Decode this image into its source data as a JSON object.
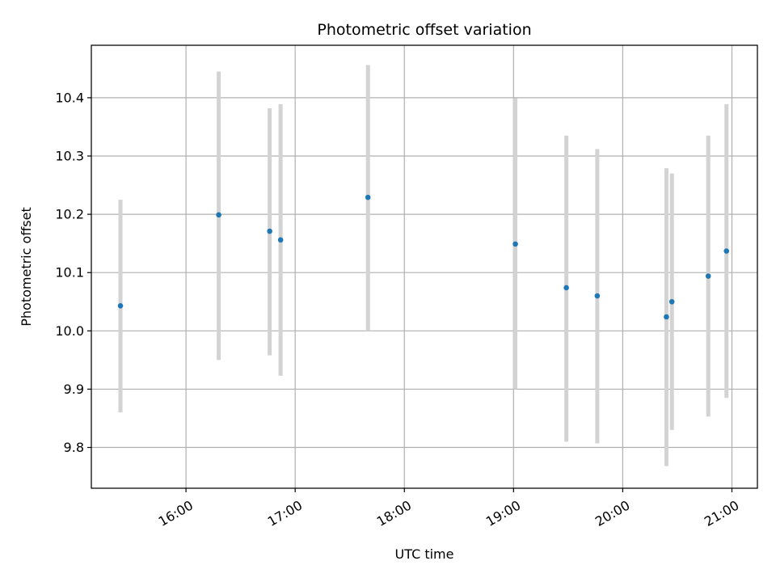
{
  "chart_data": {
    "type": "scatter",
    "title": "Photometric offset variation",
    "xlabel": "UTC time",
    "ylabel": "Photometric offset",
    "x_axis_kind": "time",
    "xlim": [
      "15:08",
      "21:14"
    ],
    "ylim": [
      9.73,
      10.49
    ],
    "xticks": [
      "16:00",
      "17:00",
      "18:00",
      "19:00",
      "20:00",
      "21:00"
    ],
    "yticks": [
      "9.8",
      "9.9",
      "10.0",
      "10.1",
      "10.2",
      "10.3",
      "10.4"
    ],
    "grid": true,
    "point_color": "#1f77b4",
    "errorbar_color": "#d3d3d3",
    "points": [
      {
        "x": "15:24",
        "y": 10.043,
        "ylow": 9.86,
        "yhigh": 10.225
      },
      {
        "x": "16:18",
        "y": 10.199,
        "ylow": 9.95,
        "yhigh": 10.445
      },
      {
        "x": "16:46",
        "y": 10.171,
        "ylow": 9.958,
        "yhigh": 10.382
      },
      {
        "x": "16:52",
        "y": 10.156,
        "ylow": 9.923,
        "yhigh": 10.389
      },
      {
        "x": "17:40",
        "y": 10.229,
        "ylow": 10.0,
        "yhigh": 10.456
      },
      {
        "x": "19:01",
        "y": 10.149,
        "ylow": 9.9,
        "yhigh": 10.399
      },
      {
        "x": "19:29",
        "y": 10.074,
        "ylow": 9.81,
        "yhigh": 10.335
      },
      {
        "x": "19:46",
        "y": 10.06,
        "ylow": 9.807,
        "yhigh": 10.312
      },
      {
        "x": "20:24",
        "y": 10.024,
        "ylow": 9.768,
        "yhigh": 10.279
      },
      {
        "x": "20:27",
        "y": 10.05,
        "ylow": 9.83,
        "yhigh": 10.27
      },
      {
        "x": "20:47",
        "y": 10.094,
        "ylow": 9.853,
        "yhigh": 10.335
      },
      {
        "x": "20:57",
        "y": 10.137,
        "ylow": 9.885,
        "yhigh": 10.389
      }
    ]
  }
}
